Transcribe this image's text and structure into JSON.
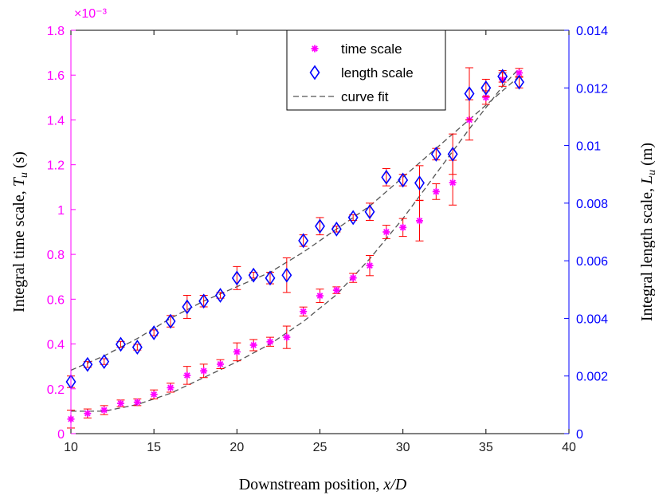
{
  "chart_data": {
    "type": "scatter",
    "xlabel": "Downstream position, x/D",
    "ylabel_left": "Integral time scale, T_u (s)",
    "ylabel_right": "Integral length scale, L_u (m)",
    "left_exponent_label": "×10⁻³",
    "xlim": [
      10,
      40
    ],
    "ylim_left": [
      0,
      1.8
    ],
    "ylim_right": [
      0,
      0.014
    ],
    "x_ticks": [
      "10",
      "15",
      "20",
      "25",
      "30",
      "35",
      "40"
    ],
    "y_left_ticks": [
      "0",
      "0.2",
      "0.4",
      "0.6",
      "0.8",
      "1",
      "1.2",
      "1.4",
      "1.6",
      "1.8"
    ],
    "y_right_ticks": [
      "0",
      "0.002",
      "0.004",
      "0.006",
      "0.008",
      "0.01",
      "0.012",
      "0.014"
    ],
    "grid": false,
    "legend_position": "top-center",
    "legend": {
      "time": "time scale",
      "length": "length scale",
      "fit": "curve fit"
    },
    "colors": {
      "time": "#ff00ff",
      "length": "#0000ff",
      "error_bar": "#ff0000",
      "fit": "#555555",
      "left_axis": "#ff00ff",
      "right_axis": "#0000ff"
    },
    "series": [
      {
        "name": "time scale",
        "axis": "left",
        "marker": "asterisk",
        "x": [
          10,
          11,
          12,
          13,
          14,
          15,
          16,
          17,
          18,
          19,
          20,
          21,
          22,
          23,
          24,
          25,
          26,
          27,
          28,
          29,
          30,
          31,
          32,
          33,
          34,
          35,
          36,
          37
        ],
        "y": [
          0.065,
          0.09,
          0.105,
          0.135,
          0.14,
          0.175,
          0.205,
          0.26,
          0.28,
          0.31,
          0.365,
          0.395,
          0.41,
          0.43,
          0.545,
          0.615,
          0.64,
          0.695,
          0.75,
          0.9,
          0.92,
          0.95,
          1.08,
          1.12,
          1.4,
          1.5,
          1.58,
          1.61
        ],
        "err": [
          0.04,
          0.02,
          0.02,
          0.015,
          0.015,
          0.02,
          0.02,
          0.04,
          0.03,
          0.02,
          0.04,
          0.025,
          0.02,
          0.05,
          0.02,
          0.03,
          0.015,
          0.02,
          0.045,
          0.03,
          0.04,
          0.09,
          0.035,
          0.1,
          0.09,
          0.03,
          0.03,
          0.02
        ]
      },
      {
        "name": "length scale",
        "axis": "right",
        "marker": "diamond",
        "x": [
          10,
          11,
          12,
          13,
          14,
          15,
          16,
          17,
          18,
          19,
          20,
          21,
          22,
          23,
          24,
          25,
          26,
          27,
          28,
          29,
          30,
          31,
          32,
          33,
          34,
          35,
          36,
          37
        ],
        "y": [
          0.0018,
          0.0024,
          0.0025,
          0.0031,
          0.003,
          0.0035,
          0.0039,
          0.0044,
          0.0046,
          0.0048,
          0.0054,
          0.0055,
          0.0054,
          0.0055,
          0.0067,
          0.0072,
          0.0071,
          0.0075,
          0.0077,
          0.0089,
          0.0088,
          0.0087,
          0.0097,
          0.0097,
          0.0118,
          0.012,
          0.0124,
          0.0122
        ],
        "err": [
          0.0002,
          0.0001,
          0.0001,
          0.0001,
          0.0001,
          0.0001,
          0.0002,
          0.0004,
          0.0002,
          0.0001,
          0.0004,
          0.0001,
          0.0002,
          0.0006,
          0.0002,
          0.0003,
          0.0001,
          0.0001,
          0.0003,
          0.0003,
          0.0002,
          0.0006,
          0.0002,
          0.0007,
          0.0009,
          0.0003,
          0.0002,
          0.0002
        ]
      }
    ],
    "fits": [
      {
        "axis": "left",
        "x": [
          10,
          12,
          14,
          16,
          18,
          20,
          22,
          24,
          26,
          28,
          30,
          32,
          34,
          36,
          37
        ],
        "y": [
          0.1,
          0.1,
          0.13,
          0.18,
          0.25,
          0.32,
          0.4,
          0.5,
          0.62,
          0.78,
          0.96,
          1.16,
          1.36,
          1.55,
          1.63
        ]
      },
      {
        "axis": "right",
        "x": [
          10,
          12,
          14,
          16,
          18,
          20,
          22,
          24,
          26,
          28,
          30,
          32,
          34,
          36,
          37
        ],
        "y": [
          0.0022,
          0.0027,
          0.0033,
          0.004,
          0.0046,
          0.0051,
          0.0056,
          0.0063,
          0.0071,
          0.0079,
          0.0089,
          0.0099,
          0.0109,
          0.0119,
          0.0124
        ]
      }
    ]
  }
}
